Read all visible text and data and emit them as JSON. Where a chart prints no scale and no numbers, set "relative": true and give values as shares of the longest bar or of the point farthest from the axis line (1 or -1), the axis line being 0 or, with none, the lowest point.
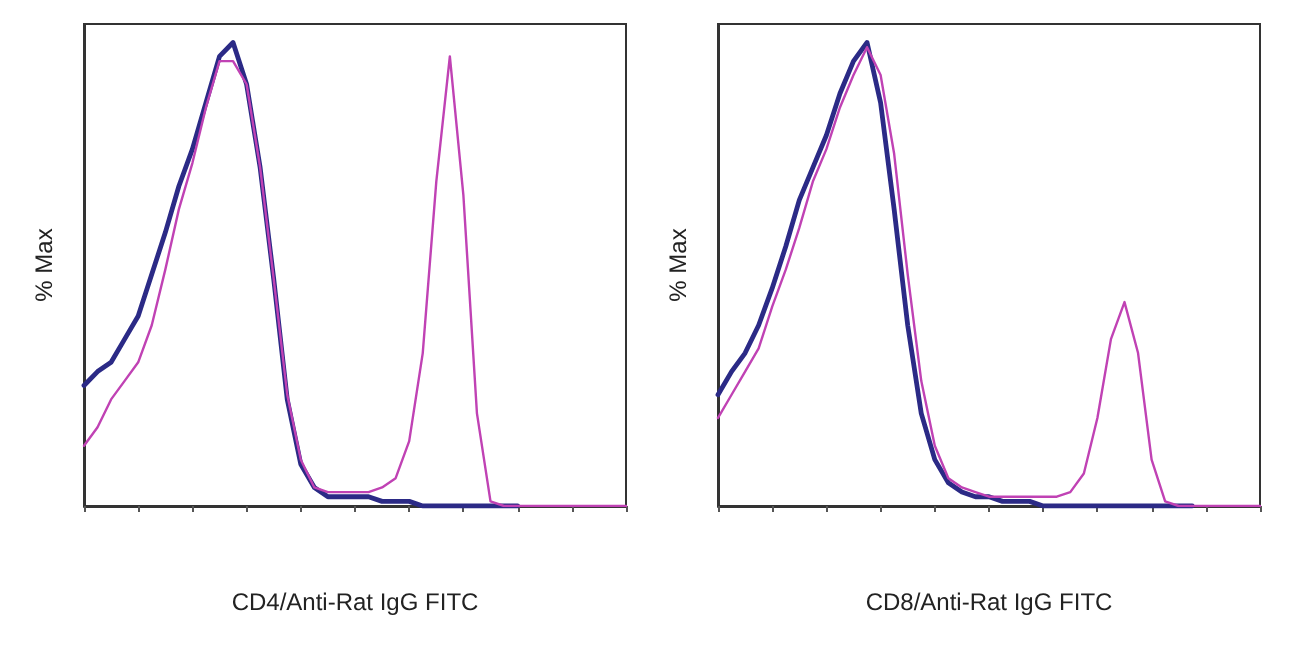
{
  "chart_data": [
    {
      "type": "line",
      "relative": true,
      "xlabel": "CD4/Anti-Rat IgG FITC",
      "ylabel": "% Max",
      "categories": [
        null,
        null,
        null,
        null,
        null,
        null,
        null,
        null,
        null,
        null,
        null,
        null,
        null,
        null,
        null,
        null,
        null,
        null,
        null,
        null,
        null,
        null,
        null,
        null,
        null,
        null,
        null,
        null,
        null,
        null,
        null,
        null,
        null,
        null,
        null,
        null,
        null,
        null,
        null,
        null,
        null
      ],
      "series": [
        {
          "color": "#2b2a86",
          "values": [
            0.26,
            0.29,
            0.31,
            0.36,
            0.41,
            0.5,
            0.59,
            0.69,
            0.77,
            0.87,
            0.97,
            1.0,
            0.91,
            0.73,
            0.49,
            0.23,
            0.09,
            0.04,
            0.02,
            0.02,
            0.02,
            0.02,
            0.01,
            0.01,
            0.01,
            0,
            0,
            0,
            0,
            0,
            0,
            0,
            0,
            null,
            null,
            null,
            null,
            null,
            null,
            null,
            null
          ]
        },
        {
          "color": "#c042b4",
          "values": [
            0.13,
            0.17,
            0.23,
            0.27,
            0.31,
            0.39,
            0.51,
            0.64,
            0.74,
            0.86,
            0.96,
            0.96,
            0.91,
            0.73,
            0.49,
            0.24,
            0.1,
            0.04,
            0.03,
            0.03,
            0.03,
            0.03,
            0.04,
            0.06,
            0.14,
            0.33,
            0.7,
            0.97,
            0.67,
            0.2,
            0.01,
            0,
            0,
            0,
            0,
            0,
            0,
            0,
            0,
            0,
            0
          ]
        }
      ]
    },
    {
      "type": "line",
      "relative": true,
      "xlabel": "CD8/Anti-Rat IgG FITC",
      "ylabel": "% Max",
      "categories": [
        null,
        null,
        null,
        null,
        null,
        null,
        null,
        null,
        null,
        null,
        null,
        null,
        null,
        null,
        null,
        null,
        null,
        null,
        null,
        null,
        null,
        null,
        null,
        null,
        null,
        null,
        null,
        null,
        null,
        null,
        null,
        null,
        null,
        null,
        null,
        null,
        null,
        null,
        null,
        null,
        null
      ],
      "series": [
        {
          "color": "#2b2a86",
          "values": [
            0.24,
            0.29,
            0.33,
            0.39,
            0.47,
            0.56,
            0.66,
            0.73,
            0.8,
            0.89,
            0.96,
            1.0,
            0.87,
            0.64,
            0.39,
            0.2,
            0.1,
            0.05,
            0.03,
            0.02,
            0.02,
            0.01,
            0.01,
            0.01,
            0,
            0,
            0,
            0,
            0,
            0,
            0,
            0,
            0,
            0,
            0,
            0,
            null,
            null,
            null,
            null,
            null
          ]
        },
        {
          "color": "#c042b4",
          "values": [
            0.19,
            0.24,
            0.29,
            0.34,
            0.43,
            0.51,
            0.6,
            0.7,
            0.77,
            0.86,
            0.93,
            0.99,
            0.93,
            0.76,
            0.5,
            0.27,
            0.13,
            0.06,
            0.04,
            0.03,
            0.02,
            0.02,
            0.02,
            0.02,
            0.02,
            0.02,
            0.03,
            0.07,
            0.19,
            0.36,
            0.44,
            0.33,
            0.1,
            0.01,
            0,
            0,
            0,
            0,
            0,
            0,
            0
          ]
        }
      ]
    }
  ]
}
